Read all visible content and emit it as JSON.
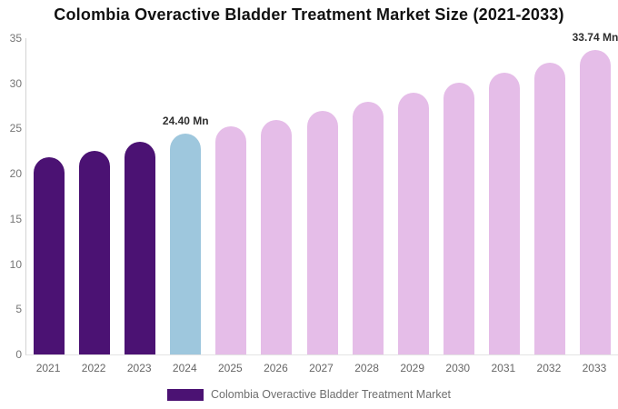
{
  "title": "Colombia Overactive Bladder Treatment Market Size (2021-2033)",
  "colors": {
    "historical_bar": "#4b1273",
    "current_year_bar": "#9ec7dd",
    "forecast_bar": "#e5bde8",
    "axis_line": "#d4d4d4",
    "axis_text": "#6e6e6e",
    "annotation_text": "#2e2e2e",
    "background": "#ffffff"
  },
  "chart_data": {
    "type": "bar",
    "title": "Colombia Overactive Bladder Treatment Market Size (2021-2033)",
    "xlabel": "",
    "ylabel": "",
    "ylim": [
      0,
      35
    ],
    "yticks": [
      0,
      5,
      10,
      15,
      20,
      25,
      30,
      35
    ],
    "grid": false,
    "categories": [
      "2021",
      "2022",
      "2023",
      "2024",
      "2025",
      "2026",
      "2027",
      "2028",
      "2029",
      "2030",
      "2031",
      "2032",
      "2033"
    ],
    "values": [
      21.8,
      22.5,
      23.5,
      24.4,
      25.2,
      26.0,
      27.0,
      28.0,
      29.0,
      30.1,
      31.2,
      32.3,
      33.74
    ],
    "unit": "Mn",
    "bar_colors": [
      "#4b1273",
      "#4b1273",
      "#4b1273",
      "#9ec7dd",
      "#e5bde8",
      "#e5bde8",
      "#e5bde8",
      "#e5bde8",
      "#e5bde8",
      "#e5bde8",
      "#e5bde8",
      "#e5bde8",
      "#e5bde8"
    ],
    "annotations": [
      {
        "category": "2024",
        "text": "24.40 Mn"
      },
      {
        "category": "2033",
        "text": "33.74 Mn"
      }
    ],
    "legend": {
      "position": "bottom",
      "entries": [
        {
          "label": "Colombia Overactive Bladder Treatment Market",
          "color": "#4b1273"
        }
      ]
    }
  }
}
